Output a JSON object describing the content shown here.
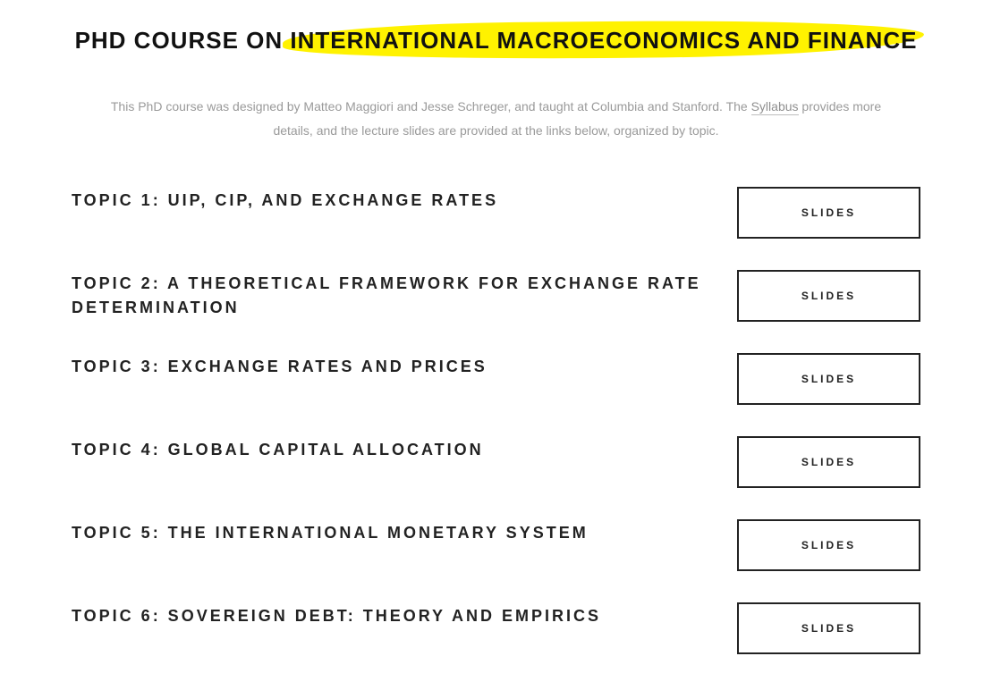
{
  "title": {
    "prefix": "PHD COURSE ON ",
    "highlighted": "INTERNATIONAL MACROECONOMICS AND FINANCE"
  },
  "intro": {
    "before_link": "This PhD course was designed by Matteo Maggiori and Jesse Schreger, and taught at Columbia and Stanford. The ",
    "link_text": "Syllabus",
    "after_link": " provides more details, and the lecture slides are provided at the links below, organized by topic."
  },
  "button_label": "SLIDES",
  "topics": [
    {
      "label": "TOPIC 1: UIP, CIP, AND EXCHANGE RATES"
    },
    {
      "label": "TOPIC 2: A THEORETICAL FRAMEWORK FOR EXCHANGE RATE DETERMINATION"
    },
    {
      "label": "TOPIC 3: EXCHANGE RATES AND PRICES"
    },
    {
      "label": "TOPIC 4: GLOBAL CAPITAL ALLOCATION"
    },
    {
      "label": "TOPIC 5: THE INTERNATIONAL MONETARY SYSTEM"
    },
    {
      "label": "TOPIC 6: SOVEREIGN DEBT: THEORY AND EMPIRICS"
    }
  ],
  "colors": {
    "highlight": "#fff200",
    "text_primary": "#111111",
    "text_secondary": "#9a9a9a",
    "border": "#222222",
    "background": "#ffffff"
  }
}
